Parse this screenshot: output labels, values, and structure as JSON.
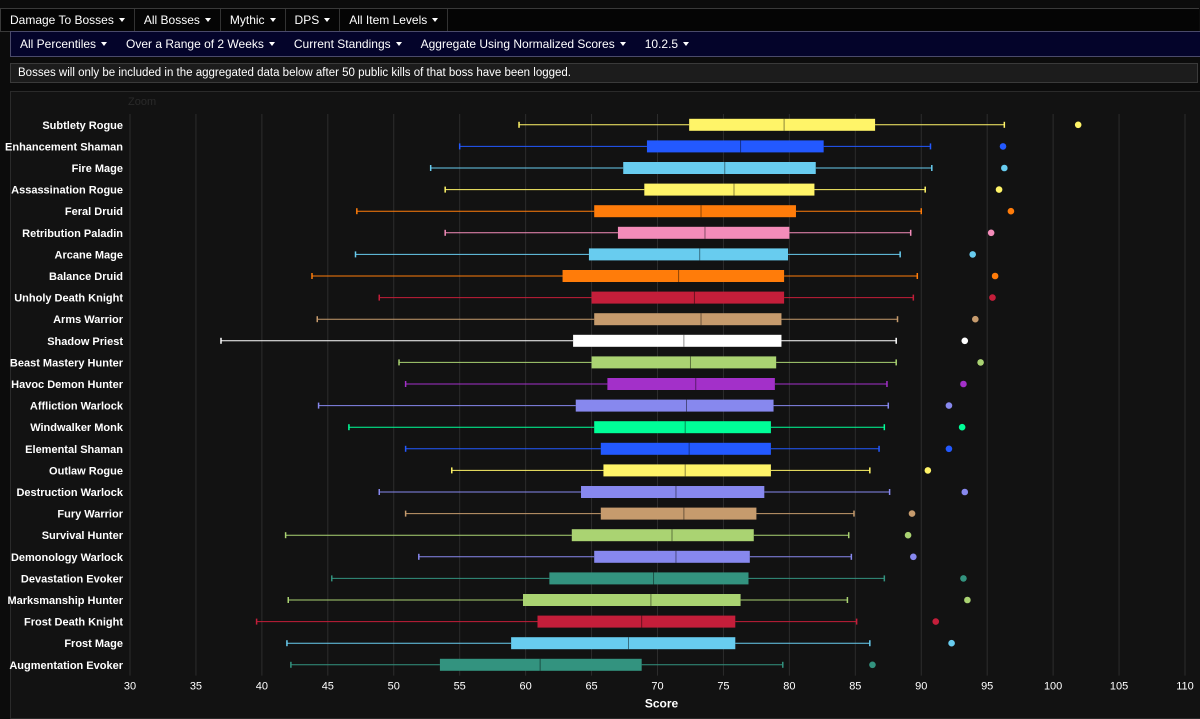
{
  "toolbar": {
    "items": [
      {
        "label": "Damage To Bosses"
      },
      {
        "label": "All Bosses"
      },
      {
        "label": "Mythic"
      },
      {
        "label": "DPS"
      },
      {
        "label": "All Item Levels"
      }
    ]
  },
  "toolbar2": {
    "items": [
      {
        "label": "All Percentiles"
      },
      {
        "label": "Over a Range of 2 Weeks"
      },
      {
        "label": "Current Standings"
      },
      {
        "label": "Aggregate Using Normalized Scores"
      },
      {
        "label": "10.2.5"
      }
    ]
  },
  "notice": "Bosses will only be included in the aggregated data below after 50 public kills of that boss have been logged.",
  "zoom_label": "Zoom",
  "colors": {
    "background": "#121212",
    "grid": "#2c2c2c",
    "text": "#ffffff"
  },
  "chart_data": {
    "type": "boxplot",
    "orientation": "horizontal",
    "xlabel": "Score",
    "xlim": [
      30,
      110
    ],
    "xticks": [
      30,
      35,
      40,
      45,
      50,
      55,
      60,
      65,
      70,
      75,
      80,
      85,
      90,
      95,
      100,
      105,
      110
    ],
    "grid": true,
    "series": [
      {
        "name": "Subtlety Rogue",
        "color": "#FFF468",
        "min": 59.5,
        "q1": 72.4,
        "median": 79.6,
        "q3": 86.5,
        "max": 96.3,
        "outlier": 101.9
      },
      {
        "name": "Enhancement Shaman",
        "color": "#2359FF",
        "min": 55.0,
        "q1": 69.2,
        "median": 76.3,
        "q3": 82.6,
        "max": 90.7,
        "outlier": 96.2
      },
      {
        "name": "Fire Mage",
        "color": "#68CCEF",
        "min": 52.8,
        "q1": 67.4,
        "median": 75.1,
        "q3": 82.0,
        "max": 90.8,
        "outlier": 96.3
      },
      {
        "name": "Assassination Rogue",
        "color": "#FFF468",
        "min": 53.9,
        "q1": 69.0,
        "median": 75.8,
        "q3": 81.9,
        "max": 90.3,
        "outlier": 95.9
      },
      {
        "name": "Feral Druid",
        "color": "#FF7C0A",
        "min": 47.2,
        "q1": 65.2,
        "median": 73.3,
        "q3": 80.5,
        "max": 90.0,
        "outlier": 96.8
      },
      {
        "name": "Retribution Paladin",
        "color": "#F48CBA",
        "min": 53.9,
        "q1": 67.0,
        "median": 73.6,
        "q3": 80.0,
        "max": 89.2,
        "outlier": 95.3
      },
      {
        "name": "Arcane Mage",
        "color": "#68CCEF",
        "min": 47.1,
        "q1": 64.8,
        "median": 73.2,
        "q3": 79.9,
        "max": 88.4,
        "outlier": 93.9
      },
      {
        "name": "Balance Druid",
        "color": "#FF7C0A",
        "min": 43.8,
        "q1": 62.8,
        "median": 71.6,
        "q3": 79.6,
        "max": 89.7,
        "outlier": 95.6
      },
      {
        "name": "Unholy Death Knight",
        "color": "#C41E3A",
        "min": 48.9,
        "q1": 65.0,
        "median": 72.8,
        "q3": 79.6,
        "max": 89.4,
        "outlier": 95.4
      },
      {
        "name": "Arms Warrior",
        "color": "#C69B6D",
        "min": 44.2,
        "q1": 65.2,
        "median": 73.3,
        "q3": 79.4,
        "max": 88.2,
        "outlier": 94.1
      },
      {
        "name": "Shadow Priest",
        "color": "#FFFFFF",
        "min": 36.9,
        "q1": 63.6,
        "median": 72.0,
        "q3": 79.4,
        "max": 88.1,
        "outlier": 93.3
      },
      {
        "name": "Beast Mastery Hunter",
        "color": "#AAD372",
        "min": 50.4,
        "q1": 65.0,
        "median": 72.5,
        "q3": 79.0,
        "max": 88.1,
        "outlier": 94.5
      },
      {
        "name": "Havoc Demon Hunter",
        "color": "#A330C9",
        "min": 50.9,
        "q1": 66.2,
        "median": 72.9,
        "q3": 78.9,
        "max": 87.4,
        "outlier": 93.2
      },
      {
        "name": "Affliction Warlock",
        "color": "#8788EE",
        "min": 44.3,
        "q1": 63.8,
        "median": 72.2,
        "q3": 78.8,
        "max": 87.5,
        "outlier": 92.1
      },
      {
        "name": "Windwalker Monk",
        "color": "#00FF98",
        "min": 46.6,
        "q1": 65.2,
        "median": 72.1,
        "q3": 78.6,
        "max": 87.2,
        "outlier": 93.1
      },
      {
        "name": "Elemental Shaman",
        "color": "#2359FF",
        "min": 50.9,
        "q1": 65.7,
        "median": 72.4,
        "q3": 78.6,
        "max": 86.8,
        "outlier": 92.1
      },
      {
        "name": "Outlaw Rogue",
        "color": "#FFF468",
        "min": 54.4,
        "q1": 65.9,
        "median": 72.1,
        "q3": 78.6,
        "max": 86.1,
        "outlier": 90.5
      },
      {
        "name": "Destruction Warlock",
        "color": "#8788EE",
        "min": 48.9,
        "q1": 64.2,
        "median": 71.4,
        "q3": 78.1,
        "max": 87.6,
        "outlier": 93.3
      },
      {
        "name": "Fury Warrior",
        "color": "#C69B6D",
        "min": 50.9,
        "q1": 65.7,
        "median": 72.0,
        "q3": 77.5,
        "max": 84.9,
        "outlier": 89.3
      },
      {
        "name": "Survival Hunter",
        "color": "#AAD372",
        "min": 41.8,
        "q1": 63.5,
        "median": 71.1,
        "q3": 77.3,
        "max": 84.5,
        "outlier": 89.0
      },
      {
        "name": "Demonology Warlock",
        "color": "#8788EE",
        "min": 51.9,
        "q1": 65.2,
        "median": 71.4,
        "q3": 77.0,
        "max": 84.7,
        "outlier": 89.4
      },
      {
        "name": "Devastation Evoker",
        "color": "#33937F",
        "min": 45.3,
        "q1": 61.8,
        "median": 69.7,
        "q3": 76.9,
        "max": 87.2,
        "outlier": 93.2
      },
      {
        "name": "Marksmanship Hunter",
        "color": "#AAD372",
        "min": 42.0,
        "q1": 59.8,
        "median": 69.5,
        "q3": 76.3,
        "max": 84.4,
        "outlier": 93.5
      },
      {
        "name": "Frost Death Knight",
        "color": "#C41E3A",
        "min": 39.6,
        "q1": 60.9,
        "median": 68.8,
        "q3": 75.9,
        "max": 85.1,
        "outlier": 91.1
      },
      {
        "name": "Frost Mage",
        "color": "#68CCEF",
        "min": 41.9,
        "q1": 58.9,
        "median": 67.8,
        "q3": 75.9,
        "max": 86.1,
        "outlier": 92.3
      },
      {
        "name": "Augmentation Evoker",
        "color": "#33937F",
        "min": 42.2,
        "q1": 53.5,
        "median": 61.1,
        "q3": 68.8,
        "max": 79.5,
        "outlier": 86.3
      }
    ]
  }
}
